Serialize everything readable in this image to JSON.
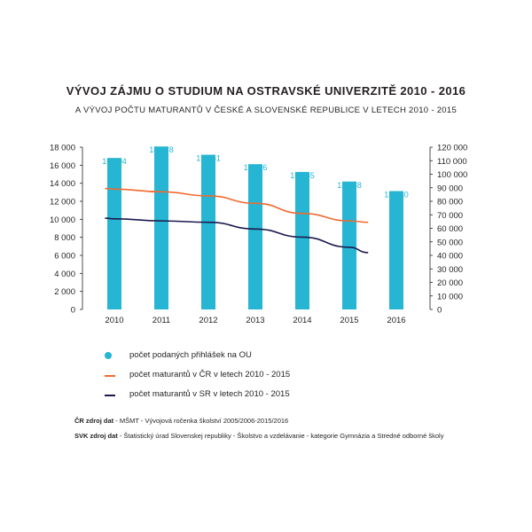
{
  "colors": {
    "bars": "#26b5d2",
    "cr_line": "#f26a2e",
    "sr_line": "#1c1a4e",
    "axis": "#231f20"
  },
  "chart_data": {
    "type": "bar",
    "title": "VÝVOJ ZÁJMU O STUDIUM NA OSTRAVSKÉ UNIVERZITĚ 2010 - 2016",
    "subtitle": "A VÝVOJ POČTU MATURANTŮ V ČESKÉ A SLOVENSKÉ REPUBLICE V LETECH 2010 - 2015",
    "categories": [
      "2010",
      "2011",
      "2012",
      "2013",
      "2014",
      "2015",
      "2016"
    ],
    "y_left": {
      "min": 0,
      "max": 18000,
      "ticks": [
        "0",
        "2 000",
        "4 000",
        "6 000",
        "8 000",
        "10 000",
        "12 000",
        "14 000",
        "16 000",
        "18 000"
      ]
    },
    "y_right": {
      "min": 0,
      "max": 120000,
      "ticks": [
        "0",
        "10 000",
        "20 000",
        "30 000",
        "40 000",
        "50 000",
        "60 000",
        "70 000",
        "80 000",
        "90 000",
        "100 000",
        "110 000",
        "120 000"
      ]
    },
    "bars": {
      "name": "počet podaných přihlášek na OU",
      "values": [
        16804,
        18078,
        17161,
        16116,
        15255,
        14188,
        13130
      ],
      "labels": [
        "16 804",
        "18 078",
        "17 161",
        "16 116",
        "15 255",
        "14 188",
        "13 130"
      ]
    },
    "series": [
      {
        "name": "počet maturantů v ČR v letech 2010 - 2015",
        "axis": "right",
        "x": [
          2009.8,
          2010,
          2011,
          2012,
          2013,
          2014,
          2015,
          2015.4
        ],
        "values": [
          89500,
          89000,
          87000,
          84000,
          78500,
          71000,
          65500,
          64500
        ]
      },
      {
        "name": "počet maturantů v SR v letech 2010 - 2015",
        "axis": "right",
        "x": [
          2009.8,
          2010,
          2011,
          2012,
          2013,
          2014,
          2015,
          2015.4
        ],
        "values": [
          67500,
          67000,
          65500,
          64500,
          59500,
          53500,
          46000,
          42000
        ]
      }
    ],
    "legend_placement": "bottom-left",
    "grid": false
  },
  "sources": {
    "cr_label": "ČR zdroj dat",
    "cr_text": " - MŠMT - Vývojová ročenka školství 2005/2006-2015/2016",
    "svk_label": "SVK zdroj dat",
    "svk_text": " - Štatistický úrad Slovenskej republiky - Školstvo a vzdelávanie - kategorie Gymnázia a Stredné odborné školy"
  }
}
